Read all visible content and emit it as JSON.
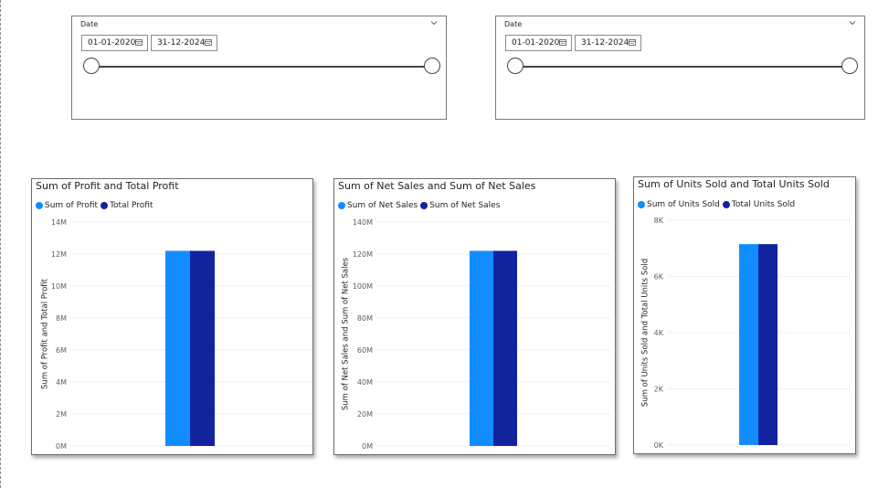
{
  "colors": {
    "series_light": "#118dff",
    "series_dark": "#12239e",
    "grid": "#d6d6d6"
  },
  "slicers": [
    {
      "title": "Date",
      "start_date": "01-01-2020",
      "end_date": "31-12-2024",
      "chevron_icon": "chevron-down-icon",
      "calendar_icon": "calendar-icon"
    },
    {
      "title": "Date",
      "start_date": "01-01-2020",
      "end_date": "31-12-2024",
      "chevron_icon": "chevron-down-icon",
      "calendar_icon": "calendar-icon"
    }
  ],
  "charts": [
    {
      "title": "Sum of Profit and Total Profit",
      "legend": [
        "Sum of Profit",
        "Total Profit"
      ],
      "ylabel": "Sum of Profit and Total Profit",
      "ticks": [
        "0M",
        "2M",
        "4M",
        "6M",
        "8M",
        "10M",
        "12M",
        "14M"
      ]
    },
    {
      "title": "Sum of Net Sales and Sum of Net Sales",
      "legend": [
        "Sum of Net Sales",
        "Sum of Net Sales"
      ],
      "ylabel": "Sum of Net Sales and Sum of Net Sales",
      "ticks": [
        "0M",
        "20M",
        "40M",
        "60M",
        "80M",
        "100M",
        "120M",
        "140M"
      ]
    },
    {
      "title": "Sum of Units Sold and Total Units Sold",
      "legend": [
        "Sum of Units Sold",
        "Total Units Sold"
      ],
      "ylabel": "Sum of Units Sold and Total Units Sold",
      "ticks": [
        "0K",
        "2K",
        "4K",
        "6K",
        "8K"
      ]
    }
  ],
  "chart_data": [
    {
      "type": "bar",
      "title": "Sum of Profit and Total Profit",
      "xlabel": "",
      "ylabel": "Sum of Profit and Total Profit",
      "ylim": [
        0,
        14000000
      ],
      "grid": true,
      "legend_position": "top-left",
      "categories": [
        ""
      ],
      "series": [
        {
          "name": "Sum of Profit",
          "values": [
            12200000
          ]
        },
        {
          "name": "Total Profit",
          "values": [
            12200000
          ]
        }
      ]
    },
    {
      "type": "bar",
      "title": "Sum of Net Sales and Sum of Net Sales",
      "xlabel": "",
      "ylabel": "Sum of Net Sales and Sum of Net Sales",
      "ylim": [
        0,
        140000000
      ],
      "grid": true,
      "legend_position": "top-left",
      "categories": [
        ""
      ],
      "series": [
        {
          "name": "Sum of Net Sales",
          "values": [
            122000000
          ]
        },
        {
          "name": "Sum of Net Sales",
          "values": [
            122000000
          ]
        }
      ]
    },
    {
      "type": "bar",
      "title": "Sum of Units Sold and Total Units Sold",
      "xlabel": "",
      "ylabel": "Sum of Units Sold and Total Units Sold",
      "ylim": [
        0,
        8000
      ],
      "grid": true,
      "legend_position": "top-left",
      "categories": [
        ""
      ],
      "series": [
        {
          "name": "Sum of Units Sold",
          "values": [
            7150
          ]
        },
        {
          "name": "Total Units Sold",
          "values": [
            7150
          ]
        }
      ]
    }
  ]
}
